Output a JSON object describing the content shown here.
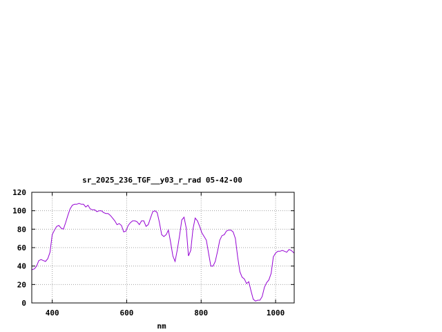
{
  "chart_data": {
    "type": "line",
    "title": "sr_2025_236_TGF__y03_r_rad 05-42-00",
    "xlabel": "nm",
    "ylabel": "",
    "xlim": [
      345,
      1050
    ],
    "ylim": [
      0,
      120
    ],
    "x_ticks": [
      400,
      600,
      800,
      1000
    ],
    "y_ticks": [
      0,
      20,
      40,
      60,
      80,
      100,
      120
    ],
    "grid": true,
    "legend": "none",
    "series": [
      {
        "color": "#9400d3",
        "x": [
          345,
          352,
          358,
          364,
          370,
          376,
          382,
          388,
          394,
          400,
          406,
          412,
          418,
          424,
          430,
          436,
          442,
          448,
          454,
          460,
          466,
          472,
          478,
          484,
          490,
          496,
          502,
          508,
          514,
          520,
          526,
          532,
          538,
          544,
          550,
          556,
          562,
          568,
          574,
          580,
          586,
          592,
          598,
          604,
          610,
          616,
          622,
          628,
          634,
          640,
          646,
          652,
          658,
          664,
          670,
          676,
          682,
          688,
          694,
          700,
          706,
          712,
          718,
          724,
          730,
          736,
          742,
          748,
          754,
          760,
          766,
          772,
          778,
          784,
          790,
          796,
          802,
          808,
          814,
          820,
          826,
          832,
          838,
          844,
          850,
          856,
          862,
          868,
          874,
          880,
          886,
          892,
          898,
          904,
          910,
          916,
          922,
          928,
          934,
          940,
          946,
          952,
          958,
          964,
          970,
          976,
          982,
          988,
          994,
          1000,
          1006,
          1012,
          1018,
          1024,
          1030,
          1036,
          1042,
          1050
        ],
        "y": [
          36,
          37,
          40,
          46,
          47,
          46,
          45,
          48,
          55,
          74,
          79,
          83,
          84,
          81,
          80,
          87,
          95,
          102,
          106,
          107,
          107,
          108,
          107,
          107,
          104,
          106,
          102,
          101,
          101,
          99,
          100,
          100,
          98,
          97,
          97,
          95,
          92,
          89,
          85,
          86,
          84,
          77,
          78,
          84,
          87,
          89,
          89,
          88,
          85,
          89,
          89,
          83,
          85,
          92,
          99,
          100,
          98,
          87,
          74,
          72,
          74,
          79,
          66,
          51,
          45,
          58,
          73,
          90,
          93,
          81,
          51,
          57,
          80,
          92,
          89,
          83,
          76,
          72,
          68,
          54,
          40,
          40,
          45,
          56,
          68,
          73,
          74,
          78,
          79,
          79,
          77,
          70,
          50,
          34,
          28,
          26,
          21,
          23,
          13,
          4,
          2,
          3,
          3,
          7,
          17,
          22,
          25,
          32,
          50,
          54,
          56,
          56,
          57,
          56,
          55,
          58,
          57,
          54
        ]
      }
    ]
  }
}
